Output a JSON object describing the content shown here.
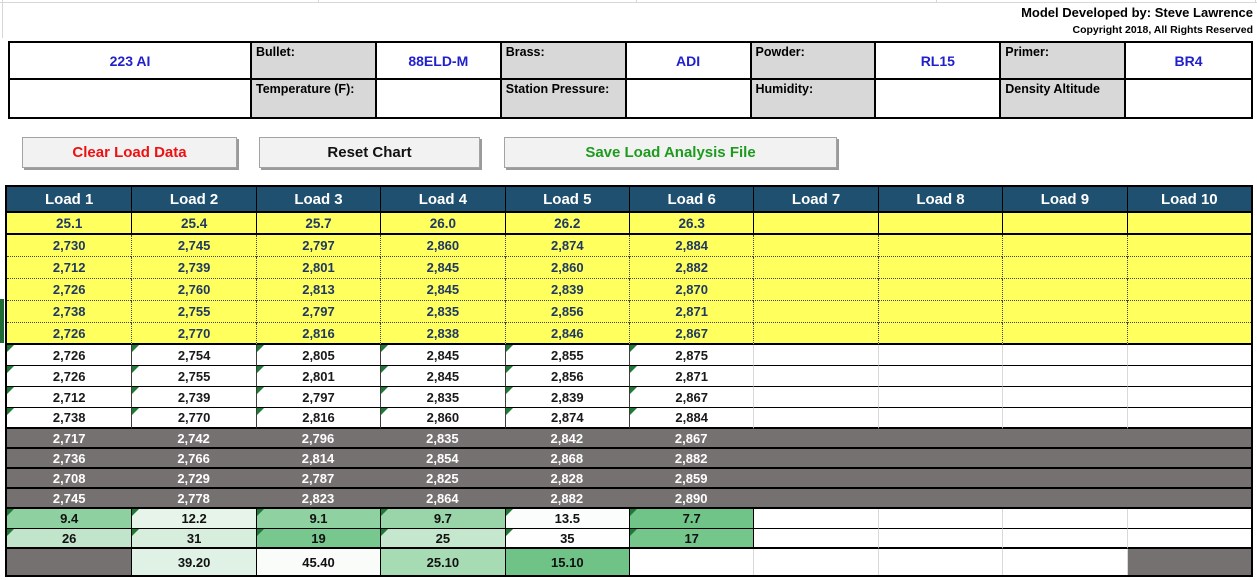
{
  "credits": {
    "developer": "Model Developed by: Steve Lawrence",
    "copyright": "Copyright 2018, All Rights Reserved"
  },
  "info_table": {
    "rows": [
      [
        {
          "text": "223 AI",
          "kind": "value"
        },
        {
          "text": "Bullet:",
          "kind": "label"
        },
        {
          "text": "88ELD-M",
          "kind": "value"
        },
        {
          "text": "Brass:",
          "kind": "label"
        },
        {
          "text": "ADI",
          "kind": "value"
        },
        {
          "text": "Powder:",
          "kind": "label"
        },
        {
          "text": "RL15",
          "kind": "value"
        },
        {
          "text": "Primer:",
          "kind": "label"
        },
        {
          "text": "BR4",
          "kind": "value"
        }
      ],
      [
        {
          "text": "",
          "kind": "value"
        },
        {
          "text": "Temperature (F):",
          "kind": "label"
        },
        {
          "text": "",
          "kind": "value"
        },
        {
          "text": "Station Pressure:",
          "kind": "label"
        },
        {
          "text": "",
          "kind": "value"
        },
        {
          "text": "Humidity:",
          "kind": "label"
        },
        {
          "text": "",
          "kind": "value"
        },
        {
          "text": "Density Altitude",
          "kind": "label"
        },
        {
          "text": "",
          "kind": "value"
        }
      ]
    ]
  },
  "buttons": [
    {
      "name": "clear-load-data-button",
      "label": "Clear Load Data",
      "text_color": "#EE1111"
    },
    {
      "name": "reset-chart-button",
      "label": "Reset Chart",
      "text_color": "#111111"
    },
    {
      "name": "save-load-analysis-button",
      "label": "Save Load Analysis File",
      "text_color": "#1E9B1E"
    }
  ],
  "load_table": {
    "headers": [
      "Load 1",
      "Load 2",
      "Load 3",
      "Load 4",
      "Load 5",
      "Load 6",
      "Load 7",
      "Load 8",
      "Load 9",
      "Load 10"
    ],
    "charge_row": [
      "25.1",
      "25.4",
      "25.7",
      "26.0",
      "26.2",
      "26.3",
      "",
      "",
      "",
      ""
    ],
    "velocities_top": [
      [
        "2,730",
        "2,745",
        "2,797",
        "2,860",
        "2,874",
        "2,884",
        "",
        "",
        "",
        ""
      ],
      [
        "2,712",
        "2,739",
        "2,801",
        "2,845",
        "2,860",
        "2,882",
        "",
        "",
        "",
        ""
      ],
      [
        "2,726",
        "2,760",
        "2,813",
        "2,845",
        "2,839",
        "2,870",
        "",
        "",
        "",
        ""
      ],
      [
        "2,738",
        "2,755",
        "2,797",
        "2,835",
        "2,856",
        "2,871",
        "",
        "",
        "",
        ""
      ],
      [
        "2,726",
        "2,770",
        "2,816",
        "2,838",
        "2,846",
        "2,867",
        "",
        "",
        "",
        ""
      ]
    ],
    "velocities_middle": [
      [
        "2,726",
        "2,754",
        "2,805",
        "2,845",
        "2,855",
        "2,875",
        "",
        "",
        "",
        ""
      ],
      [
        "2,726",
        "2,755",
        "2,801",
        "2,845",
        "2,856",
        "2,871",
        "",
        "",
        "",
        ""
      ],
      [
        "2,712",
        "2,739",
        "2,797",
        "2,835",
        "2,839",
        "2,867",
        "",
        "",
        "",
        ""
      ],
      [
        "2,738",
        "2,770",
        "2,816",
        "2,860",
        "2,874",
        "2,884",
        "",
        "",
        "",
        ""
      ]
    ],
    "velocities_gray": [
      [
        "2,717",
        "2,742",
        "2,796",
        "2,835",
        "2,842",
        "2,867",
        "",
        "",
        "",
        ""
      ],
      [
        "2,736",
        "2,766",
        "2,814",
        "2,854",
        "2,868",
        "2,882",
        "",
        "",
        "",
        ""
      ],
      [
        "2,708",
        "2,729",
        "2,787",
        "2,825",
        "2,828",
        "2,859",
        "",
        "",
        "",
        ""
      ],
      [
        "2,745",
        "2,778",
        "2,823",
        "2,864",
        "2,882",
        "2,890",
        "",
        "",
        "",
        ""
      ]
    ],
    "row_sd": {
      "values": [
        "9.4",
        "12.2",
        "9.1",
        "9.7",
        "13.5",
        "7.7",
        "",
        "",
        "",
        ""
      ],
      "colors": [
        "#8FD0A0",
        "#E6F4EA",
        "#90D1A1",
        "#99D5A8",
        "#FAFDFB",
        "#70C487",
        "",
        "",
        "",
        ""
      ]
    },
    "row_es": {
      "values": [
        "26",
        "31",
        "19",
        "25",
        "35",
        "17",
        "",
        "",
        "",
        ""
      ],
      "colors": [
        "#C1E5CB",
        "#D8EEDD",
        "#77C78E",
        "#C4E7CD",
        "#FDFEFD",
        "#74C68B",
        "",
        "",
        "",
        ""
      ]
    },
    "row_summary": {
      "values": [
        "",
        "39.20",
        "45.40",
        "25.10",
        "15.10",
        "",
        "",
        "",
        "",
        ""
      ],
      "colors": [
        "",
        "#E0F1E5",
        "#FAFCFA",
        "#A7DBB4",
        "#6FC386",
        "",
        "",
        "",
        "",
        ""
      ],
      "gray_columns": [
        0,
        9
      ]
    }
  },
  "palette": {
    "header_blue": "#1F5070",
    "cell_yellow": "#FFFF5E",
    "navy_text": "#1F3864",
    "value_blue": "#2121CC",
    "label_gray": "#D8D8D8",
    "gray_row": "#767171",
    "flag_green": "#1F7A36"
  }
}
